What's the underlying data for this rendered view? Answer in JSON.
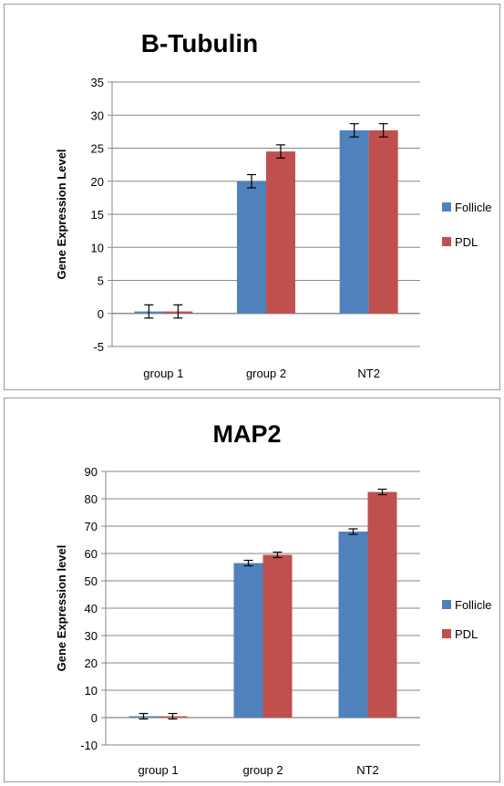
{
  "chart_data": [
    {
      "type": "bar",
      "title": "B-Tubulin",
      "ylabel": "Gene Expression Level",
      "xlabel": "",
      "categories": [
        "group 1",
        "group 2",
        "NT2"
      ],
      "ylim": [
        -5,
        35
      ],
      "yticks": [
        -5,
        0,
        5,
        10,
        15,
        20,
        25,
        30,
        35
      ],
      "grid": true,
      "legend_position": "right",
      "series": [
        {
          "name": "Follicle",
          "color": "#4f81bd",
          "values": [
            0.3,
            20.0,
            27.7
          ],
          "errors": [
            1.0,
            1.0,
            1.0
          ]
        },
        {
          "name": "PDL",
          "color": "#c0504d",
          "values": [
            0.3,
            24.5,
            27.7
          ],
          "errors": [
            1.0,
            1.0,
            1.0
          ]
        }
      ]
    },
    {
      "type": "bar",
      "title": "MAP2",
      "ylabel": "Gene Expression level",
      "xlabel": "",
      "categories": [
        "group 1",
        "group 2",
        "NT2"
      ],
      "ylim": [
        -10,
        90
      ],
      "yticks": [
        -10,
        0,
        10,
        20,
        30,
        40,
        50,
        60,
        70,
        80,
        90
      ],
      "grid": true,
      "legend_position": "right",
      "series": [
        {
          "name": "Follicle",
          "color": "#4f81bd",
          "values": [
            0.5,
            56.5,
            68.0
          ],
          "errors": [
            1.0,
            1.0,
            1.0
          ]
        },
        {
          "name": "PDL",
          "color": "#c0504d",
          "values": [
            0.5,
            59.5,
            82.5
          ],
          "errors": [
            1.0,
            1.0,
            1.0
          ]
        }
      ]
    }
  ]
}
